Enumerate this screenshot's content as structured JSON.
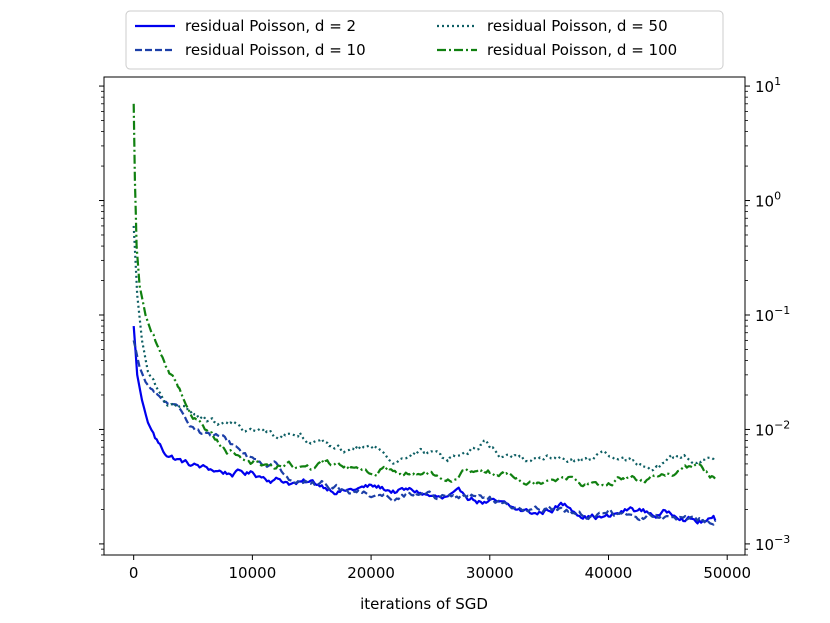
{
  "chart_data": {
    "type": "line",
    "title": "",
    "xlabel": "iterations of SGD",
    "ylabel": "",
    "xlim": [
      -2500,
      51500
    ],
    "ylim": [
      0.0008,
      12
    ],
    "yscale": "log",
    "xticks": [
      0,
      10000,
      20000,
      30000,
      40000,
      50000
    ],
    "xtick_labels": [
      "0",
      "10000",
      "20000",
      "30000",
      "40000",
      "50000"
    ],
    "yticks": [
      0.001,
      0.01,
      0.1,
      1,
      10
    ],
    "ytick_labels": [
      {
        "base": "10",
        "exp": "−3"
      },
      {
        "base": "10",
        "exp": "−2"
      },
      {
        "base": "10",
        "exp": "−1"
      },
      {
        "base": "10",
        "exp": "0"
      },
      {
        "base": "10",
        "exp": "1"
      }
    ],
    "grid": false,
    "legend_position": "top, above plot (2 columns)",
    "series": [
      {
        "name": "residual Poisson, d = 2",
        "color": "#0000ee",
        "dash": "solid",
        "x": [
          0,
          300,
          700,
          1200,
          1800,
          2500,
          3500,
          4500,
          6000,
          8000,
          10000,
          12000,
          14000,
          16000,
          18000,
          20000,
          22000,
          24000,
          26000,
          28000,
          30000,
          32000,
          34000,
          36000,
          38000,
          40000,
          42000,
          44000,
          46000,
          47500,
          49000
        ],
        "values": [
          0.08,
          0.03,
          0.018,
          0.0115,
          0.0085,
          0.0065,
          0.0057,
          0.005,
          0.0045,
          0.0042,
          0.0041,
          0.0038,
          0.0034,
          0.0032,
          0.003,
          0.0031,
          0.0029,
          0.0028,
          0.0024,
          0.0025,
          0.0023,
          0.0019,
          0.0018,
          0.0022,
          0.0019,
          0.0017,
          0.002,
          0.0018,
          0.0019,
          0.0016,
          0.0016
        ]
      },
      {
        "name": "residual Poisson, d = 10",
        "color": "#1c3fa8",
        "dash": "dashed",
        "x": [
          0,
          500,
          1000,
          2000,
          3000,
          4000,
          5000,
          6000,
          8000,
          10000,
          12000,
          14000,
          16000,
          18000,
          20000,
          22000,
          24000,
          26000,
          28000,
          30000,
          32000,
          34000,
          36000,
          38000,
          40000,
          42000,
          44000,
          46000,
          47500,
          49000
        ],
        "values": [
          0.06,
          0.035,
          0.026,
          0.019,
          0.016,
          0.013,
          0.011,
          0.0095,
          0.0075,
          0.0055,
          0.0048,
          0.0036,
          0.0033,
          0.003,
          0.0028,
          0.0027,
          0.0029,
          0.0026,
          0.0025,
          0.0024,
          0.0018,
          0.0019,
          0.0021,
          0.0017,
          0.002,
          0.0017,
          0.0018,
          0.0016,
          0.0015,
          0.0016
        ]
      },
      {
        "name": "residual Poisson, d = 50",
        "color": "#0d5e63",
        "dash": "dotted",
        "x": [
          0,
          300,
          700,
          1200,
          2000,
          3000,
          4000,
          5000,
          6000,
          8000,
          10000,
          12000,
          14000,
          16000,
          18000,
          20000,
          22000,
          24000,
          26000,
          28000,
          29500,
          31000,
          33000,
          35000,
          37000,
          39000,
          41000,
          43000,
          45000,
          47000,
          49000
        ],
        "values": [
          0.6,
          0.15,
          0.06,
          0.032,
          0.022,
          0.017,
          0.015,
          0.013,
          0.012,
          0.0105,
          0.0095,
          0.0088,
          0.01,
          0.0075,
          0.0065,
          0.007,
          0.0058,
          0.0065,
          0.0055,
          0.0062,
          0.0078,
          0.0062,
          0.0055,
          0.0058,
          0.0052,
          0.0055,
          0.005,
          0.0048,
          0.0052,
          0.0055,
          0.0052
        ]
      },
      {
        "name": "residual Poisson, d = 100",
        "color": "#108010",
        "dash": "dashdot",
        "x": [
          0,
          100,
          250,
          500,
          1000,
          1500,
          2000,
          3000,
          4000,
          5000,
          6000,
          7000,
          8000,
          10000,
          12000,
          14000,
          16000,
          18000,
          20000,
          22000,
          24000,
          26000,
          28000,
          30000,
          32000,
          34000,
          36000,
          38000,
          40000,
          42000,
          44000,
          46000,
          47500,
          49000
        ],
        "values": [
          7.0,
          1.5,
          0.4,
          0.18,
          0.1,
          0.07,
          0.055,
          0.032,
          0.021,
          0.014,
          0.0105,
          0.0082,
          0.0068,
          0.0055,
          0.0049,
          0.0047,
          0.0048,
          0.0046,
          0.0045,
          0.0047,
          0.0043,
          0.0041,
          0.0045,
          0.0042,
          0.0044,
          0.0039,
          0.0042,
          0.0036,
          0.0034,
          0.0038,
          0.0036,
          0.0042,
          0.0046,
          0.0037
        ]
      }
    ]
  }
}
